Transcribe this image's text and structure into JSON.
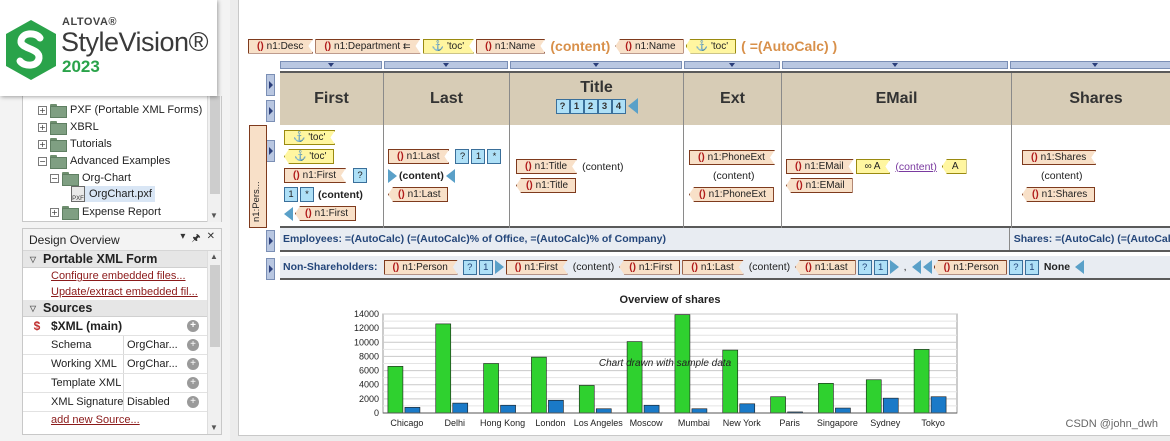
{
  "logo": {
    "brand": "ALTOVA®",
    "product": "StyleVision®",
    "year": "2023"
  },
  "tree": {
    "items": [
      {
        "label": "PXF (Portable XML Forms)",
        "type": "folder",
        "expander": "+"
      },
      {
        "label": "XBRL",
        "type": "folder",
        "expander": "+"
      },
      {
        "label": "Tutorials",
        "type": "folder",
        "expander": "+"
      },
      {
        "label": "Advanced Examples",
        "type": "folder",
        "expander": "−"
      },
      {
        "label": "Org-Chart",
        "type": "folder",
        "expander": "−"
      },
      {
        "label": "OrgChart.pxf",
        "type": "file",
        "badge": "PXF"
      },
      {
        "label": "Expense Report",
        "type": "folder",
        "expander": "+"
      }
    ]
  },
  "design_overview": {
    "title": "Design Overview",
    "controls": [
      "▾",
      "🖈",
      "✕"
    ],
    "pxf_section": "Portable XML Form",
    "pxf_links": [
      "Configure embedded files...",
      "Update/extract embedded fil..."
    ],
    "sources_section": "Sources",
    "xml_main": "$XML (main)",
    "rows": [
      {
        "key": "Schema",
        "value": "OrgChar..."
      },
      {
        "key": "Working XML",
        "value": "OrgChar..."
      },
      {
        "key": "Template XML",
        "value": ""
      },
      {
        "key": "XML Signature",
        "value": "Disabled"
      }
    ],
    "add_link": "add new Source..."
  },
  "design": {
    "toprow": {
      "desc": "n1:Desc",
      "department": "n1:Department",
      "toc1": "'toc'",
      "name_start": "n1:Name",
      "content": "(content)",
      "name_end": "n1:Name",
      "toc2": "'toc'",
      "autocalc": "( =(AutoCalc) )"
    },
    "side_label": "n1:Pers...",
    "headers": [
      "First",
      "Last",
      "Title",
      "Ext",
      "EMail",
      "Shares"
    ],
    "title_levels": [
      "?",
      "1",
      "2",
      "3",
      "4"
    ],
    "cells": {
      "first": {
        "toc_a": "'toc'",
        "toc_b": "'toc'",
        "first_start": "n1:First",
        "q": "?",
        "one": "1",
        "star": "*",
        "content": "(content)",
        "first_end": "n1:First"
      },
      "last": {
        "last_start": "n1:Last",
        "q": "?",
        "one": "1",
        "star": "*",
        "content": "(content)",
        "last_end": "n1:Last"
      },
      "title": {
        "start": "n1:Title",
        "content": "(content)",
        "end": "n1:Title"
      },
      "ext": {
        "start": "n1:PhoneExt",
        "content": "(content)",
        "end": "n1:PhoneExt"
      },
      "email": {
        "start": "n1:EMail",
        "a1": "A",
        "content": "(content)",
        "a2": "A",
        "end": "n1:EMail"
      },
      "shares": {
        "start": "n1:Shares",
        "content": "(content)",
        "end": "n1:Shares"
      }
    },
    "employees_row": "Employees:  =(AutoCalc) (=(AutoCalc)% of Office, =(AutoCalc)% of Company)",
    "shares_row": "Shares: =(AutoCalc) (=(AutoCalc)",
    "non_shareholders": {
      "label": "Non-Shareholders:",
      "person_start": "n1:Person",
      "q": "?",
      "one": "1",
      "first_start": "n1:First",
      "content1": "(content)",
      "first_end": "n1:First",
      "last_start": "n1:Last",
      "content2": "(content)",
      "last_end": "n1:Last",
      "q2": "?",
      "one2": "1",
      "comma": ",",
      "person_end": "n1:Person",
      "q3": "?",
      "one3": "1",
      "none": "None"
    }
  },
  "chart_data": {
    "type": "bar",
    "title": "Overview of shares",
    "annotation": "Chart drawn with sample data",
    "categories": [
      "Chicago",
      "Delhi",
      "Hong Kong",
      "London",
      "Los Angeles",
      "Moscow",
      "Mumbai",
      "New York",
      "Paris",
      "Singapore",
      "Sydney",
      "Tokyo"
    ],
    "series": [
      {
        "values": [
          6600,
          12600,
          7000,
          7900,
          3900,
          10100,
          13900,
          8900,
          2300,
          4200,
          4700,
          9000
        ],
        "color": "#2fd12f"
      },
      {
        "values": [
          800,
          1400,
          1100,
          1800,
          600,
          1100,
          600,
          1300,
          150,
          700,
          2100,
          2300
        ],
        "color": "#1a7ac8"
      }
    ],
    "ylim": [
      0,
      14000
    ],
    "yticks": [
      0,
      2000,
      4000,
      6000,
      8000,
      10000,
      12000,
      14000
    ],
    "grid": true
  },
  "watermark": "CSDN @john_dwh"
}
